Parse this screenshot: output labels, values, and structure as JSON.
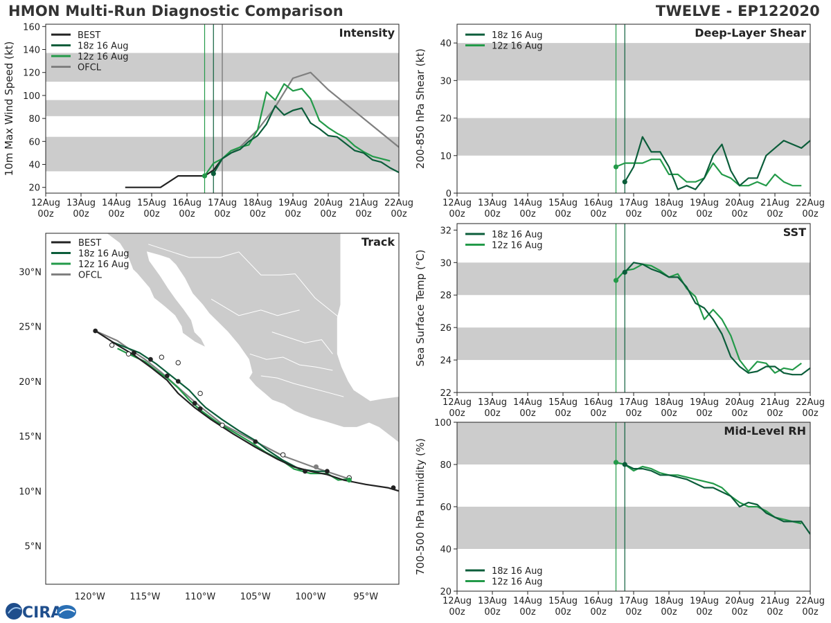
{
  "header": {
    "title": "HMON Multi-Run Diagnostic Comparison",
    "storm": "TWELVE - EP122020"
  },
  "logo": {
    "text": "CIRA"
  },
  "colors": {
    "best": "#222222",
    "run18z": "#0b5d3a",
    "run12z": "#239a49",
    "ofcl": "#808080",
    "band": "#cccccc",
    "land": "#cccccc"
  },
  "time_axis": {
    "ticks": [
      "12Aug\n00z",
      "13Aug\n00z",
      "14Aug\n00z",
      "15Aug\n00z",
      "16Aug\n00z",
      "17Aug\n00z",
      "18Aug\n00z",
      "19Aug\n00z",
      "20Aug\n00z",
      "21Aug\n00z",
      "22Aug\n00z"
    ],
    "init_times": [
      {
        "name": "12z 16 Aug",
        "day": 4.5
      },
      {
        "name": "18z 16 Aug",
        "day": 4.75
      }
    ]
  },
  "chart_data": [
    {
      "id": "intensity",
      "type": "line",
      "title": "Intensity",
      "ylabel": "10m Max Wind Speed (kt)",
      "xlim": [
        0,
        10
      ],
      "ylim": [
        15,
        162
      ],
      "yticks": [
        20,
        40,
        60,
        80,
        100,
        120,
        140,
        160
      ],
      "bands": [
        [
          34,
          64
        ],
        [
          82,
          96
        ],
        [
          112,
          137
        ]
      ],
      "ofcl_line_day": 5.0,
      "legend": [
        "BEST",
        "18z 16 Aug",
        "12z 16 Aug",
        "OFCL"
      ],
      "series": [
        {
          "name": "BEST",
          "key": "best",
          "x": [
            2.25,
            3.25,
            3.75,
            4.5,
            4.75,
            5.0
          ],
          "y": [
            20,
            20,
            30,
            30,
            35,
            45
          ]
        },
        {
          "name": "18z 16 Aug",
          "key": "run18z",
          "x": [
            4.75,
            5.0,
            5.25,
            5.5,
            5.75,
            6.0,
            6.25,
            6.5,
            6.75,
            7.0,
            7.25,
            7.5,
            7.75,
            8.0,
            8.25,
            8.5,
            8.75,
            9.0,
            9.25,
            9.5,
            9.75,
            10.0
          ],
          "y": [
            32,
            45,
            50,
            53,
            60,
            65,
            75,
            91,
            83,
            87,
            89,
            76,
            71,
            65,
            64,
            58,
            52,
            50,
            44,
            42,
            37,
            33
          ]
        },
        {
          "name": "12z 16 Aug",
          "key": "run12z",
          "x": [
            4.5,
            4.75,
            5.0,
            5.25,
            5.5,
            5.75,
            6.0,
            6.25,
            6.5,
            6.75,
            7.0,
            7.25,
            7.5,
            7.75,
            8.0,
            8.25,
            8.5,
            8.75,
            9.0,
            9.25,
            9.5,
            9.75
          ],
          "y": [
            30,
            41,
            45,
            52,
            55,
            57,
            70,
            103,
            96,
            110,
            104,
            106,
            97,
            78,
            72,
            67,
            63,
            56,
            51,
            47,
            45,
            43
          ]
        },
        {
          "name": "OFCL",
          "key": "ofcl",
          "x": [
            5.0,
            5.5,
            6.0,
            6.5,
            7.0,
            7.5,
            8.0,
            9.0,
            10.0
          ],
          "y": [
            45,
            55,
            70,
            90,
            115,
            120,
            105,
            80,
            55
          ]
        }
      ]
    },
    {
      "id": "shear",
      "type": "line",
      "title": "Deep-Layer Shear",
      "ylabel": "200-850 hPa Shear (kt)",
      "xlim": [
        0,
        10
      ],
      "ylim": [
        0,
        45
      ],
      "yticks": [
        0,
        10,
        20,
        30,
        40
      ],
      "bands": [
        [
          10,
          20
        ],
        [
          30,
          40
        ]
      ],
      "legend": [
        "18z 16 Aug",
        "12z 16 Aug"
      ],
      "series": [
        {
          "name": "18z 16 Aug",
          "key": "run18z",
          "x": [
            4.75,
            5.0,
            5.25,
            5.5,
            5.75,
            6.0,
            6.25,
            6.5,
            6.75,
            7.0,
            7.25,
            7.5,
            7.75,
            8.0,
            8.25,
            8.5,
            8.75,
            9.0,
            9.25,
            9.5,
            9.75,
            10.0
          ],
          "y": [
            3,
            7,
            15,
            11,
            11,
            7,
            1,
            2,
            1,
            4,
            10,
            13,
            6,
            2,
            4,
            4,
            10,
            12,
            14,
            13,
            12,
            14
          ]
        },
        {
          "name": "12z 16 Aug",
          "key": "run12z",
          "x": [
            4.5,
            4.75,
            5.0,
            5.25,
            5.5,
            5.75,
            6.0,
            6.25,
            6.5,
            6.75,
            7.0,
            7.25,
            7.5,
            7.75,
            8.0,
            8.25,
            8.5,
            8.75,
            9.0,
            9.25,
            9.5,
            9.75
          ],
          "y": [
            7,
            8,
            8,
            8,
            9,
            9,
            5,
            5,
            3,
            3,
            4,
            8,
            5,
            4,
            2,
            2,
            3,
            2,
            5,
            3,
            2,
            2
          ]
        }
      ]
    },
    {
      "id": "sst",
      "type": "line",
      "title": "SST",
      "ylabel": "Sea Surface Temp (°C)",
      "xlim": [
        0,
        10
      ],
      "ylim": [
        22,
        32.4
      ],
      "yticks": [
        22,
        24,
        26,
        28,
        30,
        32
      ],
      "bands": [
        [
          24,
          26
        ],
        [
          28,
          30
        ]
      ],
      "legend": [
        "18z 16 Aug",
        "12z 16 Aug"
      ],
      "series": [
        {
          "name": "18z 16 Aug",
          "key": "run18z",
          "x": [
            4.75,
            5.0,
            5.25,
            5.5,
            5.75,
            6.0,
            6.25,
            6.5,
            6.75,
            7.0,
            7.25,
            7.5,
            7.75,
            8.0,
            8.25,
            8.5,
            8.75,
            9.0,
            9.25,
            9.5,
            9.75,
            10.0
          ],
          "y": [
            29.4,
            30.0,
            29.9,
            29.6,
            29.4,
            29.1,
            29.1,
            28.5,
            27.5,
            27.2,
            26.5,
            25.6,
            24.2,
            23.6,
            23.2,
            23.3,
            23.6,
            23.6,
            23.2,
            23.1,
            23.1,
            23.5
          ]
        },
        {
          "name": "12z 16 Aug",
          "key": "run12z",
          "x": [
            4.5,
            4.75,
            5.0,
            5.25,
            5.5,
            5.75,
            6.0,
            6.25,
            6.5,
            6.75,
            7.0,
            7.25,
            7.5,
            7.75,
            8.0,
            8.25,
            8.5,
            8.75,
            9.0,
            9.25,
            9.5,
            9.75
          ],
          "y": [
            28.9,
            29.5,
            29.6,
            29.9,
            29.8,
            29.5,
            29.1,
            29.3,
            28.4,
            27.9,
            26.5,
            27.1,
            26.5,
            25.5,
            24.0,
            23.3,
            23.9,
            23.8,
            23.2,
            23.5,
            23.4,
            23.8
          ]
        }
      ]
    },
    {
      "id": "rh",
      "type": "line",
      "title": "Mid-Level RH",
      "ylabel": "700-500 hPa Humidity (%)",
      "xlim": [
        0,
        10
      ],
      "ylim": [
        20,
        100
      ],
      "yticks": [
        20,
        40,
        60,
        80,
        100
      ],
      "bands": [
        [
          40,
          60
        ],
        [
          80,
          100
        ]
      ],
      "legend": [
        "18z 16 Aug",
        "12z 16 Aug"
      ],
      "series": [
        {
          "name": "18z 16 Aug",
          "key": "run18z",
          "x": [
            4.75,
            5.0,
            5.25,
            5.5,
            5.75,
            6.0,
            6.25,
            6.5,
            6.75,
            7.0,
            7.25,
            7.5,
            7.75,
            8.0,
            8.25,
            8.5,
            8.75,
            9.0,
            9.25,
            9.5,
            9.75,
            10.0
          ],
          "y": [
            80,
            78,
            78,
            77,
            75,
            75,
            74,
            73,
            71,
            69,
            69,
            67,
            65,
            60,
            62,
            61,
            57,
            55,
            53,
            53,
            53,
            47
          ]
        },
        {
          "name": "12z 16 Aug",
          "key": "run12z",
          "x": [
            4.5,
            4.75,
            5.0,
            5.25,
            5.5,
            5.75,
            6.0,
            6.25,
            6.5,
            6.75,
            7.0,
            7.25,
            7.5,
            7.75,
            8.0,
            8.25,
            8.5,
            8.75,
            9.0,
            9.25,
            9.5,
            9.75
          ],
          "y": [
            81,
            80,
            77,
            79,
            78,
            76,
            75,
            75,
            74,
            73,
            72,
            71,
            69,
            65,
            62,
            60,
            60,
            58,
            55,
            54,
            53,
            52
          ]
        }
      ]
    },
    {
      "id": "track",
      "type": "scatter",
      "title": "Track",
      "xlim": [
        -124,
        -92
      ],
      "ylim": [
        1.5,
        33.5
      ],
      "xticks": [
        -120,
        -115,
        -110,
        -105,
        -100,
        -95
      ],
      "xtick_labels": [
        "120°W",
        "115°W",
        "110°W",
        "105°W",
        "100°W",
        "95°W"
      ],
      "yticks": [
        5,
        10,
        15,
        20,
        25,
        30
      ],
      "ytick_labels": [
        "5°N",
        "10°N",
        "15°N",
        "20°N",
        "25°N",
        "30°N"
      ],
      "legend": [
        "BEST",
        "18z 16 Aug",
        "12z 16 Aug",
        "OFCL"
      ],
      "series": [
        {
          "name": "BEST",
          "key": "best",
          "lon": [
            -92.0,
            -93.0,
            -95.0,
            -97.0,
            -98.5,
            -100.0,
            -101.5,
            -103.0,
            -105.0,
            -107.0,
            -109.0,
            -110.5,
            -112.0,
            -113.0,
            -114.5,
            -116.0,
            -117.5,
            -119.5
          ],
          "lat": [
            10.0,
            10.3,
            10.6,
            11.0,
            11.5,
            11.8,
            12.2,
            12.9,
            14.0,
            15.2,
            16.5,
            17.6,
            18.9,
            20.1,
            21.3,
            22.4,
            23.3,
            24.6
          ]
        },
        {
          "name": "18z 16 Aug",
          "key": "run18z",
          "lon": [
            -98.5,
            -99.5,
            -101.0,
            -102.5,
            -104.0,
            -105.0,
            -106.5,
            -108.0,
            -109.5,
            -110.0,
            -111.0,
            -112.0,
            -113.0,
            -114.0,
            -115.5,
            -116.5,
            -118.0
          ],
          "lat": [
            11.8,
            11.8,
            12.0,
            12.8,
            13.8,
            14.6,
            15.5,
            16.5,
            17.6,
            18.1,
            19.2,
            20.0,
            20.8,
            21.6,
            22.6,
            23.0,
            23.6
          ]
        },
        {
          "name": "12z 16 Aug",
          "key": "run12z",
          "lon": [
            -96.5,
            -97.5,
            -98.5,
            -100.0,
            -101.5,
            -102.5,
            -104.0,
            -105.5,
            -107.0,
            -108.5,
            -110.0,
            -111.0,
            -112.0,
            -113.0,
            -114.0,
            -115.0,
            -116.5,
            -117.5
          ],
          "lat": [
            11.1,
            11.0,
            11.6,
            11.6,
            12.0,
            12.7,
            13.5,
            14.5,
            15.4,
            16.3,
            17.4,
            18.3,
            19.4,
            20.3,
            21.0,
            21.8,
            22.5,
            23.0
          ]
        },
        {
          "name": "OFCL",
          "key": "ofcl",
          "lon": [
            -96.5,
            -99.5,
            -102.5,
            -105.0,
            -108.0,
            -110.0,
            -111.5,
            -113.5,
            -115.0,
            -116.5,
            -117.5,
            -119.5
          ],
          "lat": [
            11.1,
            12.1,
            13.2,
            14.5,
            16.1,
            17.7,
            19.0,
            20.8,
            22.0,
            23.0,
            23.7,
            24.6
          ]
        }
      ],
      "markers": {
        "filled_best": [
          [
            -92.5,
            10.3
          ],
          [
            -98.5,
            11.8
          ],
          [
            -100.5,
            11.8
          ],
          [
            -105.0,
            14.5
          ],
          [
            -110.0,
            17.5
          ],
          [
            -110.5,
            18.0
          ],
          [
            -112.0,
            20.0
          ],
          [
            -113.0,
            20.5
          ],
          [
            -114.5,
            22.0
          ],
          [
            -116.0,
            22.6
          ],
          [
            -119.5,
            24.6
          ]
        ],
        "open": [
          [
            -96.5,
            11.2
          ],
          [
            -102.5,
            13.3
          ],
          [
            -108.0,
            16.0
          ],
          [
            -110.0,
            18.9
          ],
          [
            -112.0,
            21.7
          ],
          [
            -113.5,
            22.2
          ],
          [
            -116.5,
            22.5
          ],
          [
            -118.0,
            23.3
          ]
        ],
        "ofcl": [
          [
            -99.5,
            12.2
          ]
        ],
        "run12z_start": [
          [
            -96.5,
            11.0
          ]
        ]
      }
    }
  ]
}
